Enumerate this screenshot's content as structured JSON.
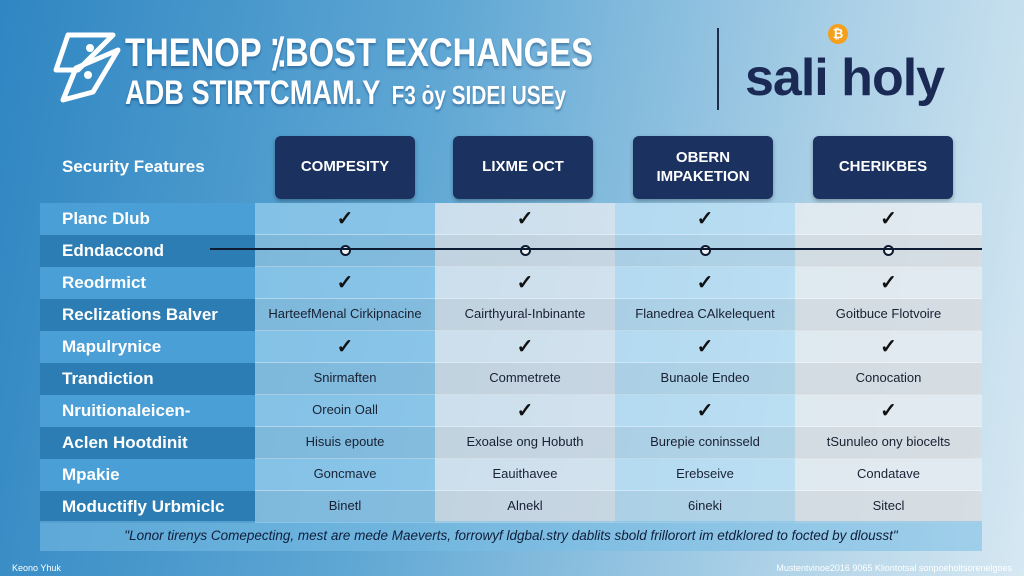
{
  "title": {
    "line1": "THENOP ⁒BOST EXCHANGES",
    "line2_main": "ADB STIRTCMAM.Y",
    "line2_small": "F3 ȯy SIDEI USEy"
  },
  "logo": {
    "text": "sali holy",
    "coin_symbol": "₿"
  },
  "table": {
    "row_header_label": "Security Features",
    "columns": [
      "COMPESITY",
      "LIXME OCT",
      "OBERN IMPAKETION",
      "CHERIKBES"
    ],
    "rows": [
      {
        "label": "Planc Dlub",
        "cells": [
          "✓",
          "✓",
          "✓",
          "✓"
        ]
      },
      {
        "label": "Edndaccond",
        "cells": [
          "○",
          "○",
          "○",
          "○"
        ]
      },
      {
        "label": "Reodrmict",
        "cells": [
          "✓",
          "✓",
          "✓",
          "✓"
        ]
      },
      {
        "label": "Reclizations Balver",
        "cells": [
          "HarteefMenal Cirkipnacine",
          "Cairthyural-Inbinante",
          "Flanedrea CAlkelequent",
          "Goitbuce Flotvoire"
        ]
      },
      {
        "label": "Mapulrynice",
        "cells": [
          "✓",
          "✓",
          "✓",
          "✓"
        ]
      },
      {
        "label": "Trandiction",
        "cells": [
          "Snirmaften",
          "Commetrete",
          "Bunaole Endeo",
          "Conocation"
        ]
      },
      {
        "label": "Nruitionaleicen-",
        "cells": [
          "Oreoin Oall",
          "✓",
          "✓",
          "✓"
        ]
      },
      {
        "label": "Aclen Hootdinit",
        "cells": [
          "Hisuis epoute",
          "Exoalse ong Hobuth",
          "Burepie coninsseld",
          "tSunuleo ony biocelts"
        ]
      },
      {
        "label": "Mpakie",
        "cells": [
          "Goncmave",
          "Eauithavee",
          "Erebseive",
          "Condatave"
        ]
      },
      {
        "label": "Moductifly Urbmiclc",
        "cells": [
          "Binetl",
          "Alnekl",
          "6ineki",
          "Sitecl"
        ]
      }
    ]
  },
  "footnote": "\"Lonor tirenys Comepecting, mest are mede Maeverts, forrowyf ldgbal.stry dablits sbold frillorort im etdklored to focted by dlousst\"",
  "source_left": "Keono Yhuk",
  "source_right": "Mustentvinoe2016 9065 Kliontotsal sonpoeholtsorenelgoes",
  "colors": {
    "header_bg": "#1b3160",
    "label_dark": "#2c7db3",
    "label_light": "#4a9fd6",
    "coin": "#f4a01c"
  },
  "icons": [
    "rocket-icon",
    "check-icon",
    "circle-marker-icon",
    "bitcoin-coin-icon"
  ]
}
